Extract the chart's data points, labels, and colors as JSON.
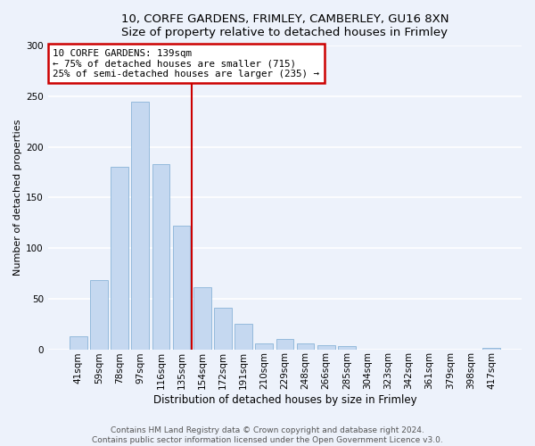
{
  "title_line1": "10, CORFE GARDENS, FRIMLEY, CAMBERLEY, GU16 8XN",
  "title_line2": "Size of property relative to detached houses in Frimley",
  "xlabel": "Distribution of detached houses by size in Frimley",
  "ylabel": "Number of detached properties",
  "bar_labels": [
    "41sqm",
    "59sqm",
    "78sqm",
    "97sqm",
    "116sqm",
    "135sqm",
    "154sqm",
    "172sqm",
    "191sqm",
    "210sqm",
    "229sqm",
    "248sqm",
    "266sqm",
    "285sqm",
    "304sqm",
    "323sqm",
    "342sqm",
    "361sqm",
    "379sqm",
    "398sqm",
    "417sqm"
  ],
  "bar_values": [
    13,
    68,
    180,
    245,
    183,
    122,
    61,
    41,
    25,
    6,
    10,
    6,
    4,
    3,
    0,
    0,
    0,
    0,
    0,
    0,
    1
  ],
  "bar_color": "#c5d8f0",
  "bar_edge_color": "#8ab4d8",
  "vline_x": 5.5,
  "vline_color": "#cc0000",
  "annotation_text": "10 CORFE GARDENS: 139sqm\n← 75% of detached houses are smaller (715)\n25% of semi-detached houses are larger (235) →",
  "annotation_box_color": "#ffffff",
  "annotation_box_edge": "#cc0000",
  "ylim": [
    0,
    300
  ],
  "yticks": [
    0,
    50,
    100,
    150,
    200,
    250,
    300
  ],
  "footer_line1": "Contains HM Land Registry data © Crown copyright and database right 2024.",
  "footer_line2": "Contains public sector information licensed under the Open Government Licence v3.0.",
  "bg_color": "#edf2fb",
  "grid_color": "#ffffff",
  "title_fontsize": 9.5,
  "ylabel_fontsize": 8,
  "xlabel_fontsize": 8.5,
  "tick_fontsize": 7.5,
  "annot_fontsize": 7.8,
  "footer_fontsize": 6.5
}
